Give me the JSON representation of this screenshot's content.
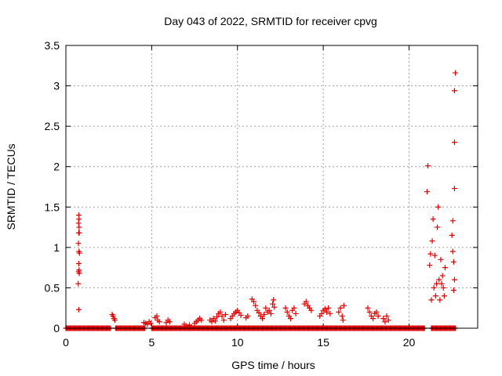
{
  "chart_data": {
    "type": "scatter",
    "title": "Day 043 of 2022, SRMTID for receiver cpvg",
    "xlabel": "GPS time / hours",
    "ylabel": "SRMTID / TECUs",
    "xlim": [
      0,
      24
    ],
    "ylim": [
      0,
      3.5
    ],
    "xticks": [
      0,
      5,
      10,
      15,
      20
    ],
    "xtick_labels": [
      "0",
      "5",
      "10",
      "15",
      "20"
    ],
    "yticks": [
      0,
      0.5,
      1,
      1.5,
      2,
      2.5,
      3,
      3.5
    ],
    "ytick_labels": [
      "0",
      "0.5",
      "1",
      "1.5",
      "2",
      "2.5",
      "3",
      "3.5"
    ],
    "grid": true,
    "marker": "+",
    "color": "#dd0000",
    "series": [
      {
        "name": "SRMTID",
        "points": [
          [
            0.75,
            1.4
          ],
          [
            0.76,
            1.35
          ],
          [
            0.74,
            1.3
          ],
          [
            0.77,
            1.25
          ],
          [
            0.75,
            1.18
          ],
          [
            0.78,
            1.18
          ],
          [
            0.73,
            1.05
          ],
          [
            0.76,
            0.95
          ],
          [
            0.79,
            0.93
          ],
          [
            0.75,
            0.8
          ],
          [
            0.77,
            0.72
          ],
          [
            0.74,
            0.7
          ],
          [
            0.78,
            0.68
          ],
          [
            0.72,
            0.55
          ],
          [
            0.75,
            0.23
          ],
          [
            2.7,
            0.17
          ],
          [
            2.75,
            0.15
          ],
          [
            2.8,
            0.12
          ],
          [
            2.85,
            0.1
          ],
          [
            4.55,
            0.07
          ],
          [
            4.65,
            0.06
          ],
          [
            4.75,
            0.05
          ],
          [
            4.85,
            0.08
          ],
          [
            4.95,
            0.06
          ],
          [
            5.2,
            0.13
          ],
          [
            5.3,
            0.15
          ],
          [
            5.35,
            0.1
          ],
          [
            5.45,
            0.08
          ],
          [
            5.85,
            0.07
          ],
          [
            5.95,
            0.1
          ],
          [
            6.05,
            0.08
          ],
          [
            6.9,
            0.05
          ],
          [
            7.0,
            0.03
          ],
          [
            7.2,
            0.04
          ],
          [
            7.5,
            0.06
          ],
          [
            7.6,
            0.08
          ],
          [
            7.7,
            0.1
          ],
          [
            7.8,
            0.12
          ],
          [
            7.9,
            0.1
          ],
          [
            8.4,
            0.1
          ],
          [
            8.5,
            0.08
          ],
          [
            8.6,
            0.12
          ],
          [
            8.7,
            0.09
          ],
          [
            8.8,
            0.14
          ],
          [
            8.9,
            0.18
          ],
          [
            9.0,
            0.2
          ],
          [
            9.1,
            0.15
          ],
          [
            9.2,
            0.1
          ],
          [
            9.3,
            0.17
          ],
          [
            9.6,
            0.12
          ],
          [
            9.7,
            0.15
          ],
          [
            9.8,
            0.18
          ],
          [
            9.9,
            0.2
          ],
          [
            10.0,
            0.22
          ],
          [
            10.1,
            0.19
          ],
          [
            10.2,
            0.16
          ],
          [
            10.5,
            0.13
          ],
          [
            10.6,
            0.15
          ],
          [
            10.85,
            0.36
          ],
          [
            10.95,
            0.33
          ],
          [
            11.05,
            0.28
          ],
          [
            11.15,
            0.22
          ],
          [
            11.25,
            0.19
          ],
          [
            11.35,
            0.15
          ],
          [
            11.45,
            0.12
          ],
          [
            11.55,
            0.17
          ],
          [
            11.65,
            0.25
          ],
          [
            11.75,
            0.2
          ],
          [
            11.85,
            0.22
          ],
          [
            11.95,
            0.18
          ],
          [
            12.05,
            0.3
          ],
          [
            12.1,
            0.35
          ],
          [
            12.15,
            0.26
          ],
          [
            12.8,
            0.25
          ],
          [
            12.9,
            0.2
          ],
          [
            13.0,
            0.15
          ],
          [
            13.1,
            0.12
          ],
          [
            13.2,
            0.22
          ],
          [
            13.3,
            0.25
          ],
          [
            13.4,
            0.18
          ],
          [
            13.9,
            0.3
          ],
          [
            14.0,
            0.33
          ],
          [
            14.1,
            0.28
          ],
          [
            14.2,
            0.25
          ],
          [
            14.3,
            0.22
          ],
          [
            14.8,
            0.15
          ],
          [
            14.9,
            0.18
          ],
          [
            15.0,
            0.22
          ],
          [
            15.1,
            0.24
          ],
          [
            15.2,
            0.2
          ],
          [
            15.3,
            0.25
          ],
          [
            15.4,
            0.18
          ],
          [
            15.9,
            0.2
          ],
          [
            16.0,
            0.25
          ],
          [
            16.1,
            0.15
          ],
          [
            16.15,
            0.1
          ],
          [
            16.2,
            0.28
          ],
          [
            17.6,
            0.25
          ],
          [
            17.7,
            0.2
          ],
          [
            17.8,
            0.15
          ],
          [
            17.9,
            0.12
          ],
          [
            18.0,
            0.18
          ],
          [
            18.1,
            0.2
          ],
          [
            18.2,
            0.15
          ],
          [
            18.5,
            0.12
          ],
          [
            18.6,
            0.08
          ],
          [
            18.7,
            0.15
          ],
          [
            18.8,
            0.1
          ],
          [
            21.1,
            2.01
          ],
          [
            21.05,
            1.69
          ],
          [
            21.2,
            0.78
          ],
          [
            21.25,
            0.92
          ],
          [
            21.3,
            0.35
          ],
          [
            21.35,
            1.08
          ],
          [
            21.4,
            1.35
          ],
          [
            21.45,
            0.5
          ],
          [
            21.5,
            0.9
          ],
          [
            21.55,
            0.4
          ],
          [
            21.6,
            0.55
          ],
          [
            21.65,
            1.25
          ],
          [
            21.7,
            1.5
          ],
          [
            21.75,
            0.6
          ],
          [
            21.8,
            0.35
          ],
          [
            21.85,
            0.85
          ],
          [
            21.9,
            0.55
          ],
          [
            21.95,
            0.65
          ],
          [
            22.0,
            0.5
          ],
          [
            22.05,
            0.4
          ],
          [
            22.1,
            0.75
          ],
          [
            22.55,
            1.33
          ],
          [
            22.5,
            1.15
          ],
          [
            22.55,
            0.95
          ],
          [
            22.6,
            0.82
          ],
          [
            22.65,
            0.6
          ],
          [
            22.6,
            0.47
          ],
          [
            22.65,
            1.73
          ],
          [
            22.65,
            2.3
          ],
          [
            22.65,
            2.94
          ],
          [
            22.7,
            3.16
          ]
        ],
        "zero_runs": [
          [
            0,
            2.6
          ],
          [
            2.9,
            4.6
          ],
          [
            5.0,
            20.9
          ],
          [
            21.3,
            22.7
          ]
        ]
      }
    ]
  }
}
